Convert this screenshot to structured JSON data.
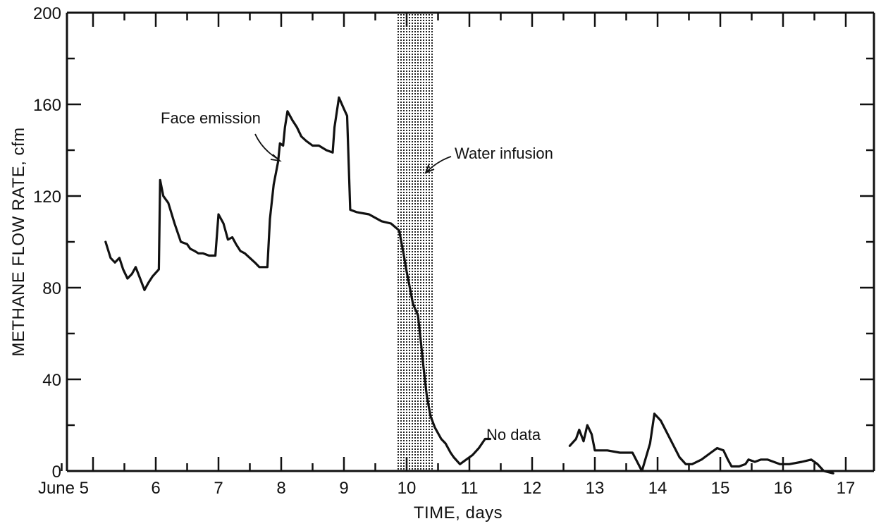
{
  "chart_data": {
    "type": "line",
    "title": "",
    "xlabel": "TIME, days",
    "ylabel": "METHANE FLOW RATE, cfm",
    "xlim": [
      4.7,
      17.5
    ],
    "ylim": [
      0,
      200
    ],
    "x_ticks": [
      {
        "value": 5,
        "label": "June 5"
      },
      {
        "value": 6,
        "label": "6"
      },
      {
        "value": 7,
        "label": "7"
      },
      {
        "value": 8,
        "label": "8"
      },
      {
        "value": 9,
        "label": "9"
      },
      {
        "value": 10,
        "label": "10"
      },
      {
        "value": 11,
        "label": "11"
      },
      {
        "value": 12,
        "label": "12"
      },
      {
        "value": 13,
        "label": "13"
      },
      {
        "value": 14,
        "label": "14"
      },
      {
        "value": 15,
        "label": "15"
      },
      {
        "value": 16,
        "label": "16"
      },
      {
        "value": 17,
        "label": "17"
      }
    ],
    "y_ticks": [
      0,
      40,
      80,
      120,
      160,
      200
    ],
    "y_minor_ticks": [
      20,
      60,
      100,
      140,
      180
    ],
    "shaded_band": {
      "label": "Water infusion",
      "x_start": 9.85,
      "x_end": 10.42
    },
    "annotations": [
      {
        "text": "Face emission",
        "x": 8.0,
        "y": 135
      },
      {
        "text": "Water infusion",
        "x": 10.42,
        "y": 130
      },
      {
        "text": "No data",
        "x": 11.3,
        "y": 14
      }
    ],
    "series": [
      {
        "name": "",
        "segments": [
          [
            [
              5.2,
              100
            ],
            [
              5.28,
              93
            ],
            [
              5.35,
              91
            ],
            [
              5.42,
              93
            ],
            [
              5.48,
              88
            ],
            [
              5.55,
              84
            ],
            [
              5.62,
              86
            ],
            [
              5.68,
              89
            ],
            [
              5.75,
              84
            ],
            [
              5.82,
              79
            ],
            [
              5.88,
              82
            ],
            [
              5.95,
              85
            ],
            [
              6.05,
              88
            ],
            [
              6.07,
              127
            ],
            [
              6.12,
              120
            ],
            [
              6.2,
              117
            ],
            [
              6.3,
              108
            ],
            [
              6.4,
              100
            ],
            [
              6.5,
              99
            ],
            [
              6.55,
              97
            ],
            [
              6.62,
              96
            ],
            [
              6.68,
              95
            ],
            [
              6.75,
              95
            ],
            [
              6.85,
              94
            ],
            [
              6.95,
              94
            ],
            [
              7.0,
              112
            ],
            [
              7.08,
              108
            ],
            [
              7.15,
              101
            ],
            [
              7.22,
              102
            ],
            [
              7.28,
              99
            ],
            [
              7.35,
              96
            ],
            [
              7.42,
              95
            ],
            [
              7.5,
              93
            ],
            [
              7.58,
              91
            ],
            [
              7.65,
              89
            ],
            [
              7.72,
              89
            ],
            [
              7.78,
              89
            ],
            [
              7.82,
              110
            ],
            [
              7.88,
              125
            ],
            [
              7.95,
              135
            ],
            [
              7.98,
              143
            ],
            [
              8.03,
              142
            ],
            [
              8.06,
              150
            ],
            [
              8.1,
              157
            ],
            [
              8.18,
              153
            ],
            [
              8.25,
              150
            ],
            [
              8.32,
              146
            ],
            [
              8.4,
              144
            ],
            [
              8.5,
              142
            ],
            [
              8.6,
              142
            ],
            [
              8.72,
              140
            ],
            [
              8.82,
              139
            ],
            [
              8.85,
              150
            ],
            [
              8.92,
              163
            ],
            [
              9.0,
              158
            ],
            [
              9.05,
              155
            ],
            [
              9.1,
              114
            ],
            [
              9.2,
              113
            ],
            [
              9.4,
              112
            ],
            [
              9.6,
              109
            ],
            [
              9.75,
              108
            ],
            [
              9.88,
              105
            ],
            [
              9.95,
              95
            ],
            [
              10.0,
              87
            ],
            [
              10.05,
              80
            ],
            [
              10.1,
              73
            ],
            [
              10.18,
              68
            ],
            [
              10.22,
              58
            ],
            [
              10.27,
              45
            ],
            [
              10.32,
              33
            ],
            [
              10.38,
              24
            ],
            [
              10.45,
              19
            ],
            [
              10.55,
              14
            ],
            [
              10.62,
              12
            ],
            [
              10.7,
              8
            ],
            [
              10.75,
              6
            ],
            [
              10.85,
              3
            ],
            [
              10.95,
              5
            ],
            [
              11.05,
              7
            ],
            [
              11.15,
              10
            ],
            [
              11.25,
              14
            ],
            [
              11.33,
              14
            ]
          ],
          [
            [
              12.6,
              11
            ],
            [
              12.7,
              14
            ],
            [
              12.75,
              18
            ],
            [
              12.82,
              13
            ],
            [
              12.88,
              20
            ],
            [
              12.95,
              16
            ],
            [
              13.0,
              9
            ],
            [
              13.2,
              9
            ],
            [
              13.4,
              8
            ],
            [
              13.6,
              8
            ],
            [
              13.75,
              0
            ],
            [
              13.88,
              12
            ],
            [
              13.95,
              25
            ],
            [
              14.05,
              22
            ],
            [
              14.2,
              14
            ],
            [
              14.35,
              6
            ],
            [
              14.45,
              3
            ],
            [
              14.55,
              3
            ],
            [
              14.7,
              5
            ],
            [
              14.85,
              8
            ],
            [
              14.95,
              10
            ],
            [
              15.05,
              9
            ],
            [
              15.12,
              5
            ],
            [
              15.18,
              2
            ],
            [
              15.3,
              2
            ],
            [
              15.4,
              3
            ],
            [
              15.45,
              5
            ],
            [
              15.55,
              4
            ],
            [
              15.65,
              5
            ],
            [
              15.75,
              5
            ],
            [
              15.85,
              4
            ],
            [
              15.95,
              3
            ],
            [
              16.1,
              3
            ],
            [
              16.3,
              4
            ],
            [
              16.45,
              5
            ],
            [
              16.55,
              3
            ],
            [
              16.65,
              0
            ],
            [
              16.8,
              -1
            ]
          ]
        ]
      }
    ]
  }
}
